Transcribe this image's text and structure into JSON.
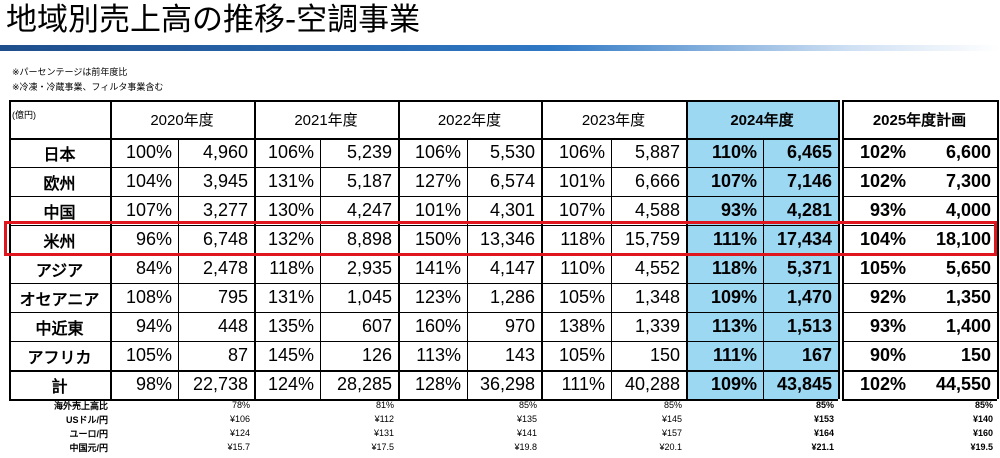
{
  "page": {
    "title": "地域別売上高の推移-空調事業",
    "notes": [
      "※パーセンテージは前年度比",
      "※冷凍・冷蔵事業、フィルタ事業含む"
    ]
  },
  "table": {
    "unit": "(億円)",
    "years": [
      "2020年度",
      "2021年度",
      "2022年度",
      "2023年度",
      "2024年度",
      "2025年度計画"
    ],
    "rows": [
      {
        "region": "日本",
        "pcts": [
          "100%",
          "106%",
          "106%",
          "106%",
          "110%",
          "102%"
        ],
        "values": [
          "4,960",
          "5,239",
          "5,530",
          "5,887",
          "6,465",
          "6,600"
        ]
      },
      {
        "region": "欧州",
        "pcts": [
          "104%",
          "131%",
          "127%",
          "101%",
          "107%",
          "102%"
        ],
        "values": [
          "3,945",
          "5,187",
          "6,574",
          "6,666",
          "7,146",
          "7,300"
        ]
      },
      {
        "region": "中国",
        "pcts": [
          "107%",
          "130%",
          "101%",
          "107%",
          "93%",
          "93%"
        ],
        "values": [
          "3,277",
          "4,247",
          "4,301",
          "4,588",
          "4,281",
          "4,000"
        ]
      },
      {
        "region": "米州",
        "pcts": [
          "96%",
          "132%",
          "150%",
          "118%",
          "111%",
          "104%"
        ],
        "values": [
          "6,748",
          "8,898",
          "13,346",
          "15,759",
          "17,434",
          "18,100"
        ]
      },
      {
        "region": "アジア",
        "pcts": [
          "84%",
          "118%",
          "141%",
          "110%",
          "118%",
          "105%"
        ],
        "values": [
          "2,478",
          "2,935",
          "4,147",
          "4,552",
          "5,371",
          "5,650"
        ]
      },
      {
        "region": "オセアニア",
        "pcts": [
          "108%",
          "131%",
          "123%",
          "105%",
          "109%",
          "92%"
        ],
        "values": [
          "795",
          "1,045",
          "1,286",
          "1,348",
          "1,470",
          "1,350"
        ]
      },
      {
        "region": "中近東",
        "pcts": [
          "94%",
          "135%",
          "160%",
          "138%",
          "113%",
          "93%"
        ],
        "values": [
          "448",
          "607",
          "970",
          "1,339",
          "1,513",
          "1,400"
        ]
      },
      {
        "region": "アフリカ",
        "pcts": [
          "105%",
          "145%",
          "113%",
          "105%",
          "111%",
          "90%"
        ],
        "values": [
          "87",
          "126",
          "143",
          "150",
          "167",
          "150"
        ]
      },
      {
        "region": "計",
        "pcts": [
          "98%",
          "124%",
          "128%",
          "111%",
          "109%",
          "102%"
        ],
        "values": [
          "22,738",
          "28,285",
          "36,298",
          "40,288",
          "43,845",
          "44,550"
        ]
      }
    ],
    "footer": [
      {
        "label": "海外売上高比",
        "values": [
          "78%",
          "81%",
          "85%",
          "85%",
          "85%",
          "85%"
        ]
      },
      {
        "label": "USドル/円",
        "values": [
          "¥106",
          "¥112",
          "¥135",
          "¥145",
          "¥153",
          "¥140"
        ]
      },
      {
        "label": "ユーロ/円",
        "values": [
          "¥124",
          "¥131",
          "¥141",
          "¥157",
          "¥164",
          "¥160"
        ]
      },
      {
        "label": "中国元/円",
        "values": [
          "¥15.7",
          "¥17.5",
          "¥19.8",
          "¥20.1",
          "¥21.1",
          "¥19.5"
        ]
      }
    ],
    "highlight_region": "米州",
    "colors": {
      "current_year_fill": "#9dd8f3",
      "highlight_border": "#e0161f",
      "title_bar": "#2f78c4"
    }
  }
}
